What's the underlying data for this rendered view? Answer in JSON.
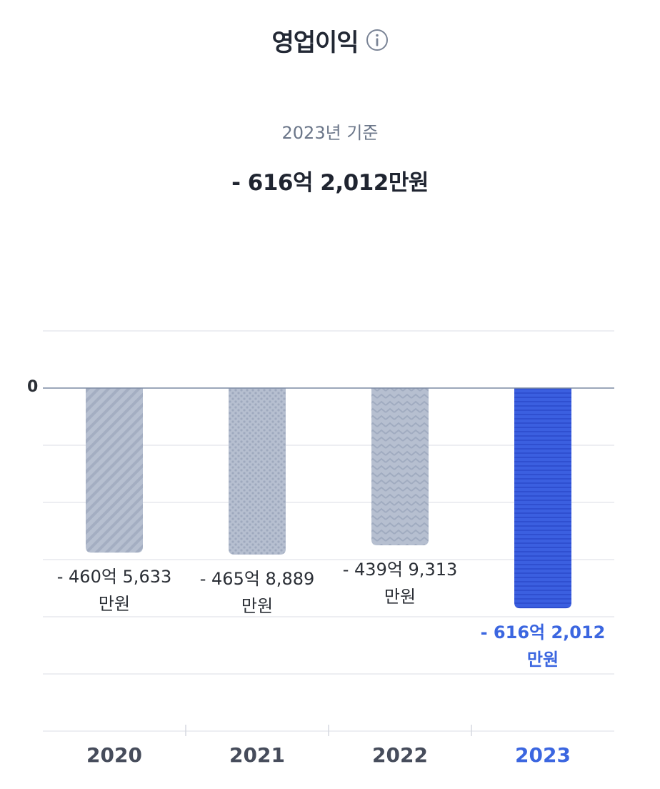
{
  "header": {
    "title": "영업이익",
    "basis": "2023년 기준",
    "headline_value": "- 616억 2,012만원"
  },
  "icons": {
    "info": "info-circle-icon"
  },
  "colors": {
    "bar_gray": "#b3bccd",
    "bar_highlight": "#3b5fe0",
    "highlight_text": "#3b66e0",
    "zero_line": "#7c8aa3",
    "grid": "#e7e9ee"
  },
  "chart_data": {
    "type": "bar",
    "title": "영업이익",
    "categories": [
      "2020",
      "2021",
      "2022",
      "2023"
    ],
    "values": [
      -46056333,
      -46588889,
      -43999313,
      -61620120
    ],
    "unit": "만원",
    "value_labels": [
      [
        "- 460억 5,633",
        "만원"
      ],
      [
        "- 465억 8,889",
        "만원"
      ],
      [
        "- 439억 9,313",
        "만원"
      ],
      [
        "- 616억 2,012",
        "만원"
      ]
    ],
    "y_tick_labels": [
      "0"
    ],
    "highlight_category": "2023",
    "grid": true
  }
}
